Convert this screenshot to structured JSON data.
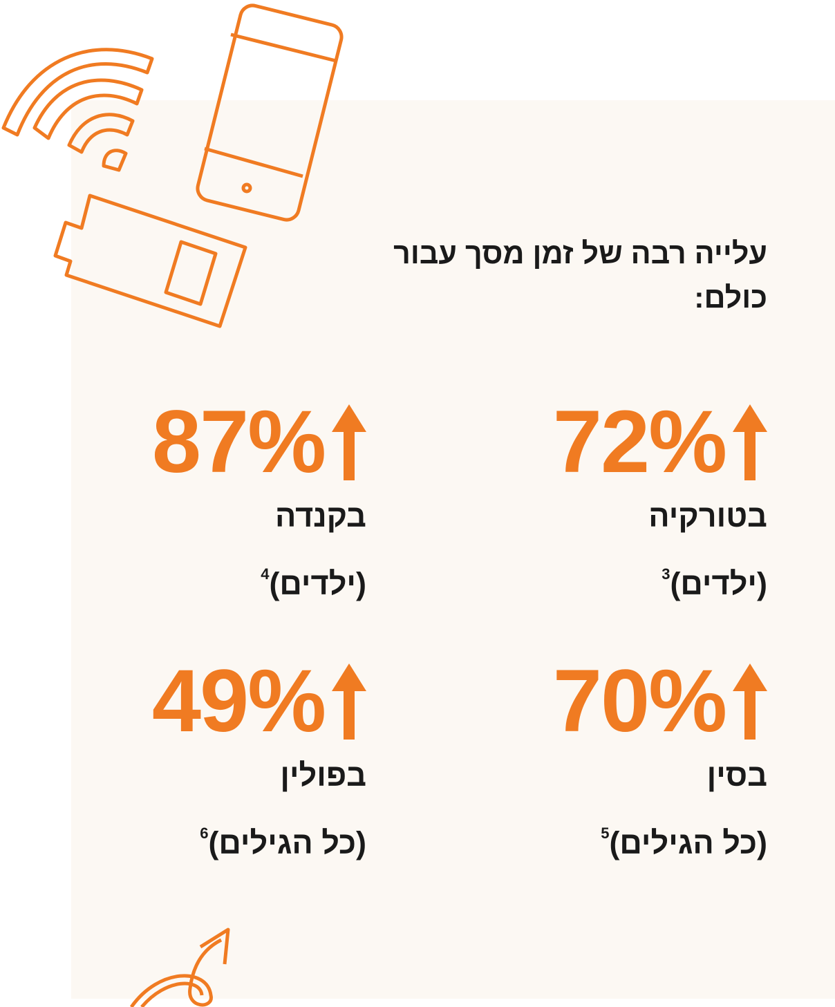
{
  "heading": [
    "עלייה רבה של זמן מסך עבור",
    "כולם:"
  ],
  "stats": [
    {
      "value": "72%",
      "country": "בטורקיה",
      "group": "(ילדים)",
      "note": "3"
    },
    {
      "value": "87%",
      "country": "בקנדה",
      "group": "(ילדים)",
      "note": "4"
    },
    {
      "value": "70%",
      "country": "בסין",
      "group": "(כל הגילים)",
      "note": "5"
    },
    {
      "value": "49%",
      "country": "בפולין",
      "group": "(כל הגילים)",
      "note": "6"
    }
  ]
}
